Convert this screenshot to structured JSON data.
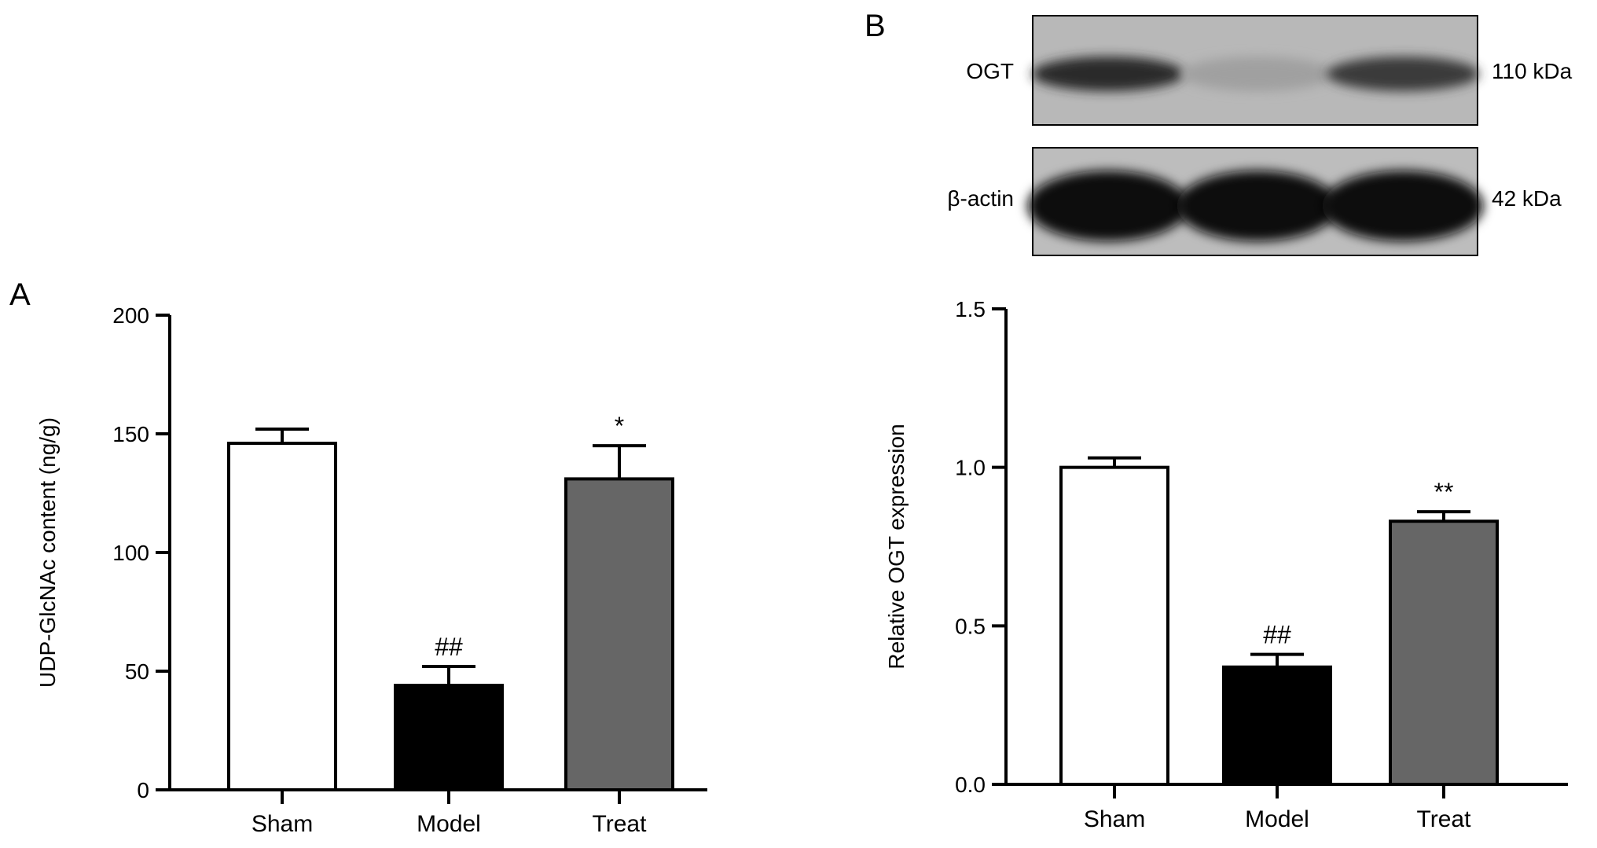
{
  "chart_data": [
    {
      "panel": "A",
      "type": "bar",
      "categories": [
        "Sham",
        "Model",
        "Treat"
      ],
      "values": [
        146,
        44,
        131
      ],
      "error_upper": [
        152,
        52,
        145
      ],
      "significance": [
        "",
        "##",
        "*"
      ],
      "ylabel": "UDP-GlcNAc content (ng/g)",
      "ylim": [
        0,
        200
      ],
      "yticks": [
        0,
        50,
        100,
        150,
        200
      ],
      "ytick_labels": [
        "0",
        "50",
        "100",
        "150",
        "200"
      ],
      "bar_fills": [
        "#ffffff",
        "#000000",
        "#666666"
      ],
      "grid": false,
      "legend": "none"
    },
    {
      "panel": "B",
      "type": "bar",
      "categories": [
        "Sham",
        "Model",
        "Treat"
      ],
      "values": [
        1.0,
        0.37,
        0.83
      ],
      "error_upper": [
        1.03,
        0.41,
        0.86
      ],
      "significance": [
        "",
        "##",
        "**"
      ],
      "ylabel": "Relative OGT expression",
      "ylim": [
        0,
        1.5
      ],
      "yticks": [
        0,
        0.5,
        1.0,
        1.5
      ],
      "ytick_labels": [
        "0.0",
        "0.5",
        "1.0",
        "1.5"
      ],
      "bar_fills": [
        "#ffffff",
        "#000000",
        "#666666"
      ],
      "grid": false,
      "legend": "none"
    }
  ],
  "blot": {
    "rows": [
      {
        "protein": "OGT",
        "size": "110 kDa",
        "band_intensity": [
          0.85,
          0.15,
          0.75
        ]
      },
      {
        "protein": "β-actin",
        "size": "42 kDa",
        "band_intensity": [
          1.0,
          1.0,
          1.0
        ]
      }
    ]
  }
}
